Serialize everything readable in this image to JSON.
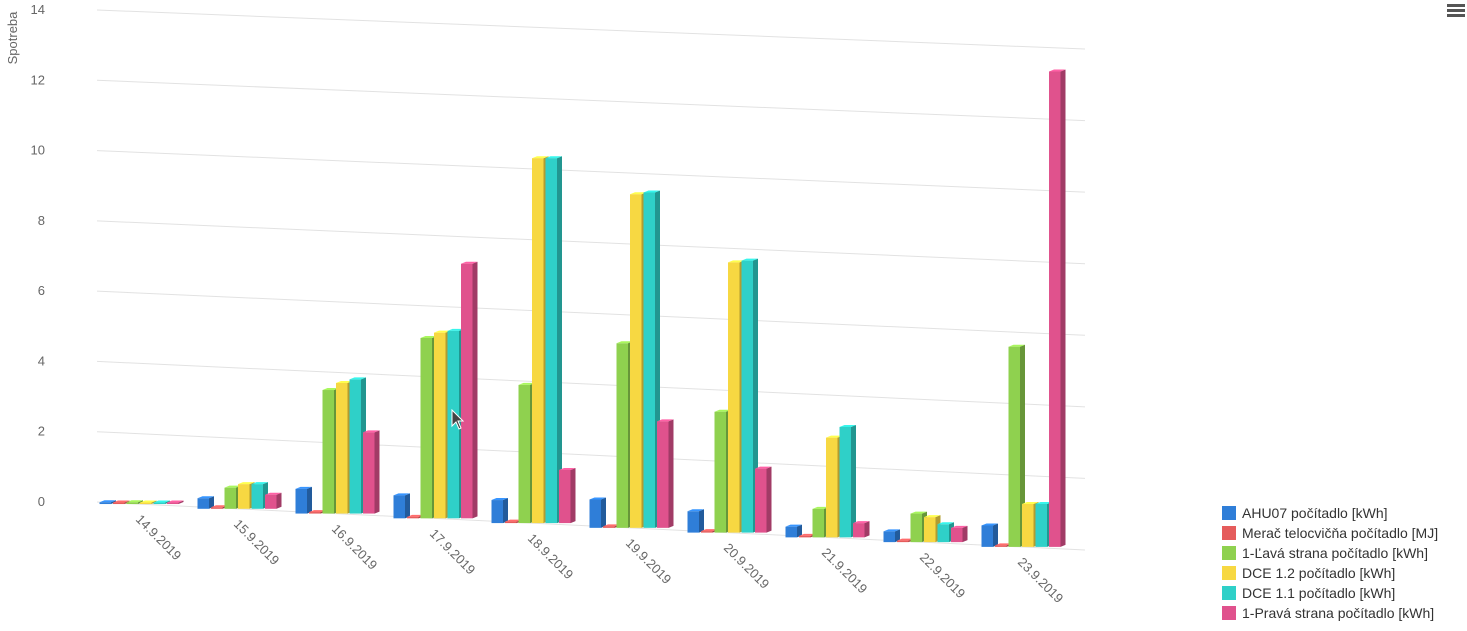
{
  "chart_data": {
    "type": "bar",
    "three_d": true,
    "ylabel": "Spotreba",
    "ylim": [
      0,
      14
    ],
    "yticks": [
      "14",
      "12",
      "10",
      "8",
      "6",
      "4",
      "2",
      "0"
    ],
    "grid": true,
    "legend_position": "bottom-right",
    "categories": [
      "14.9.2019",
      "15.9.2019",
      "16.9.2019",
      "17.9.2019",
      "18.9.2019",
      "19.9.2019",
      "20.9.2019",
      "21.9.2019",
      "22.9.2019",
      "23.9.2019"
    ],
    "series": [
      {
        "name": "AHU07 počítadlo [kWh]",
        "color": "#2f7ed8",
        "values": [
          0.05,
          0.3,
          0.7,
          0.65,
          0.65,
          0.8,
          0.6,
          0.3,
          0.3,
          0.6
        ]
      },
      {
        "name": "Merač telocvičňa počítadlo [MJ]",
        "color": "#e55c5c",
        "values": [
          0.02,
          0.01,
          0.02,
          0.02,
          0.02,
          0.02,
          0.02,
          0.02,
          0.02,
          0.02
        ]
      },
      {
        "name": "1-Ľavá strana počítadlo [kWh]",
        "color": "#8fd14f",
        "values": [
          0.05,
          0.6,
          3.5,
          5.1,
          3.9,
          5.2,
          3.4,
          0.8,
          0.8,
          5.6
        ]
      },
      {
        "name": "DCE 1.2 počítadlo [kWh]",
        "color": "#f7d842",
        "values": [
          0.02,
          0.7,
          3.7,
          5.25,
          10.3,
          9.4,
          7.6,
          2.8,
          0.7,
          1.2
        ]
      },
      {
        "name": "DCE 1.1 počítadlo [kWh]",
        "color": "#2fd0c8",
        "values": [
          0.02,
          0.7,
          3.8,
          5.3,
          10.3,
          9.45,
          7.65,
          3.1,
          0.5,
          1.2
        ]
      },
      {
        "name": "1-Pravá strana počítadlo [kWh]",
        "color": "#e0528d",
        "values": [
          0.02,
          0.4,
          2.3,
          7.2,
          1.5,
          3.0,
          1.8,
          0.4,
          0.4,
          13.3
        ]
      }
    ]
  }
}
